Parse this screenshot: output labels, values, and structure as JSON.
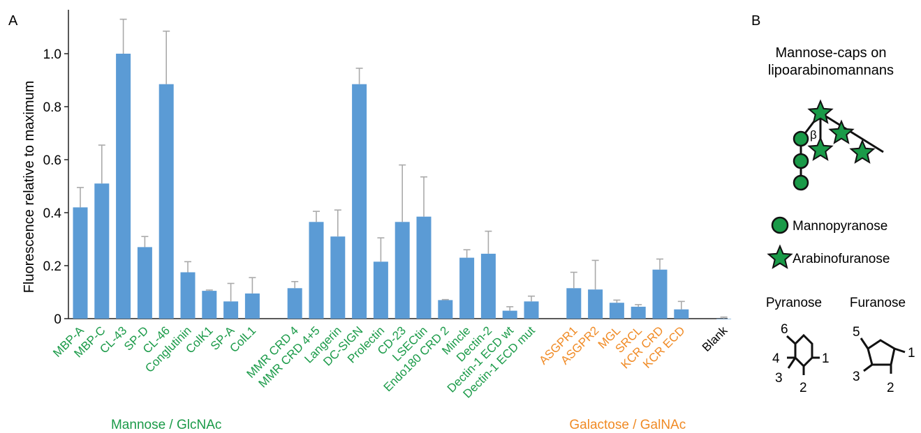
{
  "panels": {
    "a_label": "A",
    "b_label": "B"
  },
  "chart_data": {
    "type": "bar",
    "ylabel": "Fluorescence relative to maximum",
    "ylim": [
      0,
      1.15
    ],
    "yticks": [
      "0",
      "0.2",
      "0.4",
      "0.6",
      "0.8",
      "1.0"
    ],
    "ytick_values": [
      0,
      0.2,
      0.4,
      0.6,
      0.8,
      1.0
    ],
    "colors": {
      "bar": "#5b9bd5",
      "error": "#aaaaaa",
      "mannose": "#1a9a48",
      "galactose": "#f08a24",
      "other": "#000000"
    },
    "groups": [
      {
        "name": "Mannose / GlcNAc",
        "color_key": "mannose",
        "bars": [
          {
            "label": "MBP-A",
            "value": 0.42,
            "error": 0.075
          },
          {
            "label": "MBP-C",
            "value": 0.51,
            "error": 0.145
          },
          {
            "label": "CL-43",
            "value": 1.0,
            "error": 0.13
          },
          {
            "label": "SP-D",
            "value": 0.27,
            "error": 0.04
          },
          {
            "label": "CL-46",
            "value": 0.885,
            "error": 0.2
          },
          {
            "label": "Conglutinin",
            "value": 0.175,
            "error": 0.04
          },
          {
            "label": "ColK1",
            "value": 0.105,
            "error": 0.003
          },
          {
            "label": "SP-A",
            "value": 0.065,
            "error": 0.068
          },
          {
            "label": "ColL1",
            "value": 0.095,
            "error": 0.06
          }
        ]
      },
      {
        "name": "",
        "color_key": "mannose",
        "bars": [
          {
            "label": "MMR CRD 4",
            "value": 0.115,
            "error": 0.025
          },
          {
            "label": "MMR CRD 4+5",
            "value": 0.365,
            "error": 0.04
          },
          {
            "label": "Langerin",
            "value": 0.31,
            "error": 0.1
          },
          {
            "label": "DC-SIGN",
            "value": 0.885,
            "error": 0.06
          },
          {
            "label": "Prolectin",
            "value": 0.215,
            "error": 0.09
          },
          {
            "label": "CD-23",
            "value": 0.365,
            "error": 0.215
          },
          {
            "label": "LSECtin",
            "value": 0.385,
            "error": 0.15
          },
          {
            "label": "Endo180 CRD 2",
            "value": 0.07,
            "error": 0.002
          },
          {
            "label": "Mincle",
            "value": 0.23,
            "error": 0.03
          },
          {
            "label": "Dectin-2",
            "value": 0.245,
            "error": 0.085
          },
          {
            "label": "Dectin-1 ECD wt",
            "value": 0.03,
            "error": 0.015
          },
          {
            "label": "Dectin-1 ECD mut",
            "value": 0.065,
            "error": 0.02
          }
        ]
      },
      {
        "name": "Galactose / GalNAc",
        "color_key": "galactose",
        "bars": [
          {
            "label": "ASGPR1",
            "value": 0.115,
            "error": 0.06
          },
          {
            "label": "ASGPR2",
            "value": 0.11,
            "error": 0.11
          },
          {
            "label": "MGL",
            "value": 0.06,
            "error": 0.01
          },
          {
            "label": "SRCL",
            "value": 0.045,
            "error": 0.008
          },
          {
            "label": "KCR CRD",
            "value": 0.185,
            "error": 0.04
          },
          {
            "label": "KCR ECD",
            "value": 0.035,
            "error": 0.03
          }
        ]
      },
      {
        "name": "",
        "color_key": "other",
        "bars": [
          {
            "label": "Blank",
            "value": 0.0,
            "error": 0.006
          }
        ]
      }
    ]
  },
  "panel_b": {
    "title_line1": "Mannose-caps on",
    "title_line2": "lipoarabinomannans",
    "beta_label": "β",
    "legend": [
      {
        "label": "Mannopyranose",
        "shape": "circle"
      },
      {
        "label": "Arabinofuranose",
        "shape": "star"
      }
    ],
    "symbol_colors": {
      "fill": "#1a9a48",
      "stroke": "#111111"
    },
    "pyranose": {
      "title": "Pyranose",
      "positions": [
        "6",
        "4",
        "3",
        "2",
        "1"
      ]
    },
    "furanose": {
      "title": "Furanose",
      "positions": [
        "5",
        "3",
        "2",
        "1"
      ]
    }
  }
}
